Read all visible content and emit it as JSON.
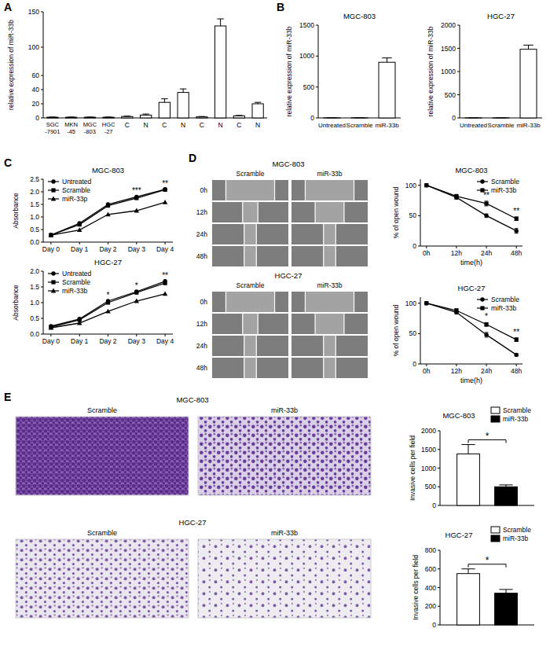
{
  "panel_letters": [
    "A",
    "B",
    "C",
    "D",
    "E"
  ],
  "wound_images": [
    {
      "title": "MGC-803",
      "columns": [
        "Scramble",
        "miR-33b"
      ],
      "rows": [
        "0h",
        "12h",
        "24h",
        "48h"
      ]
    },
    {
      "title": "HGC-27",
      "columns": [
        "Scramble",
        "miR-33b"
      ],
      "rows": [
        "0h",
        "12h",
        "24h",
        "48h"
      ]
    }
  ],
  "invasion_images": [
    {
      "title": "MGC-803",
      "columns": [
        "Scramble",
        "miR-33b"
      ]
    },
    {
      "title": "HGC-27",
      "columns": [
        "Scramble",
        "miR-33b"
      ]
    }
  ],
  "chart_data": [
    {
      "type": "bar",
      "ylabel": "relative expression of miR-33b",
      "categories": [
        "SGC-7901",
        "MKN-45",
        "MGC-803",
        "HGC-27",
        "C",
        "N",
        "C",
        "N",
        "C",
        "N",
        "C",
        "N"
      ],
      "series": [
        {
          "name": "miR-33b",
          "color": "#ffffff",
          "values": [
            1,
            1,
            1,
            1,
            2,
            4,
            22,
            36,
            1.5,
            130,
            3,
            20
          ],
          "errors": [
            0.2,
            0.2,
            0.2,
            0.2,
            0.5,
            1.5,
            5,
            5,
            0.5,
            10,
            0.5,
            2
          ]
        }
      ],
      "ylim": [
        0,
        150
      ],
      "yticks": [
        0,
        20,
        40,
        60,
        100,
        150
      ]
    },
    {
      "type": "bar",
      "title": "MGC-803",
      "ylabel": "relative expression of miR-33b",
      "categories": [
        "Untreated",
        "Scramble",
        "miR-33b"
      ],
      "series": [
        {
          "name": "miR-33b",
          "color": "#ffffff",
          "values": [
            1,
            1.2,
            900
          ],
          "errors": [
            0.1,
            0.2,
            70
          ]
        }
      ],
      "ylim": [
        0,
        1500
      ],
      "yticks": [
        0,
        500,
        1000,
        1500
      ]
    },
    {
      "type": "bar",
      "title": "HGC-27",
      "ylabel": "relative expression of miR-33b",
      "categories": [
        "Untreated",
        "Scramble",
        "miR-33b"
      ],
      "series": [
        {
          "name": "miR-33b",
          "color": "#ffffff",
          "values": [
            1,
            1.1,
            1480
          ],
          "errors": [
            0.1,
            0.1,
            90
          ]
        }
      ],
      "ylim": [
        0,
        2000
      ],
      "yticks": [
        0,
        500,
        1000,
        1500,
        2000
      ]
    },
    {
      "type": "line",
      "title": "MGC-803",
      "ylabel": "Absorbance",
      "categories": [
        "Day 0",
        "Day 1",
        "Day 2",
        "Day 3",
        "Day 4"
      ],
      "series": [
        {
          "name": "Untreated",
          "color": "#000000",
          "marker": "circle",
          "values": [
            0.28,
            0.75,
            1.5,
            1.8,
            2.1
          ]
        },
        {
          "name": "Scramble",
          "color": "#000000",
          "marker": "square",
          "values": [
            0.28,
            0.7,
            1.45,
            1.75,
            2.08
          ]
        },
        {
          "name": "miR-33p",
          "color": "#000000",
          "marker": "triangle",
          "values": [
            0.28,
            0.48,
            1.1,
            1.25,
            1.58
          ]
        }
      ],
      "ylim": [
        0,
        2.5
      ],
      "yticks": [
        {
          "value": 0,
          "label": "0.0"
        },
        0.5,
        {
          "value": 1,
          "label": "1.0"
        },
        1.5,
        {
          "value": 2,
          "label": "2.0"
        },
        2.5
      ],
      "legend": "upper left",
      "annotations": [
        {
          "category": "Day 3",
          "text": "***"
        },
        {
          "category": "Day 4",
          "text": "**"
        }
      ]
    },
    {
      "type": "line",
      "title": "HGC-27",
      "ylabel": "Absorbance",
      "categories": [
        "Day 0",
        "Day 1",
        "Day 2",
        "Day 3",
        "Day 4"
      ],
      "series": [
        {
          "name": "Untreated",
          "color": "#000000",
          "marker": "circle",
          "values": [
            0.25,
            0.48,
            1.05,
            1.35,
            1.68
          ]
        },
        {
          "name": "Scramble",
          "color": "#000000",
          "marker": "square",
          "values": [
            0.22,
            0.45,
            1.0,
            1.32,
            1.62
          ]
        },
        {
          "name": "miR-33b",
          "color": "#000000",
          "marker": "triangle",
          "values": [
            0.2,
            0.35,
            0.72,
            1.05,
            1.28
          ]
        }
      ],
      "ylim": [
        0,
        2
      ],
      "yticks": [
        {
          "value": 0,
          "label": "0.0"
        },
        0.5,
        {
          "value": 1,
          "label": "1.0"
        },
        1.5,
        {
          "value": 2,
          "label": "2.0"
        }
      ],
      "legend": "upper left",
      "annotations": [
        {
          "category": "Day 2",
          "text": "*"
        },
        {
          "category": "Day 3",
          "text": "*"
        },
        {
          "category": "Day 4",
          "text": "**"
        }
      ]
    },
    {
      "type": "line",
      "title": "MGC-803",
      "ylabel": "% of open wound",
      "xlabel": "time(h)",
      "categories": [
        "0h",
        "12h",
        "24h",
        "48h"
      ],
      "series": [
        {
          "name": "Scramble",
          "color": "#000000",
          "marker": "circle",
          "values": [
            100,
            80,
            50,
            25
          ],
          "errors": [
            0,
            3,
            3,
            4
          ]
        },
        {
          "name": "miR-33b",
          "color": "#000000",
          "marker": "square",
          "values": [
            100,
            82,
            70,
            45
          ],
          "errors": [
            0,
            3,
            4,
            3
          ]
        }
      ],
      "ylim": [
        0,
        110
      ],
      "yticks": [
        0,
        50,
        100
      ],
      "legend": "upper right",
      "annotations": [
        {
          "category": "24h",
          "text": "**"
        },
        {
          "category": "48h",
          "text": "**"
        }
      ]
    },
    {
      "type": "line",
      "title": "HGC-27",
      "ylabel": "% of open wound",
      "xlabel": "time(h)",
      "categories": [
        "0h",
        "12h",
        "24h",
        "48h"
      ],
      "series": [
        {
          "name": "Scramble",
          "color": "#000000",
          "marker": "circle",
          "values": [
            100,
            85,
            48,
            15
          ],
          "errors": [
            0,
            3,
            4,
            2
          ]
        },
        {
          "name": "miR-33b",
          "color": "#000000",
          "marker": "square",
          "values": [
            100,
            88,
            65,
            40
          ],
          "errors": [
            0,
            3,
            3,
            3
          ]
        }
      ],
      "ylim": [
        0,
        110
      ],
      "yticks": [
        0,
        50,
        100
      ],
      "legend": "upper right",
      "annotations": [
        {
          "category": "24h",
          "text": "*"
        },
        {
          "category": "48h",
          "text": "**"
        }
      ]
    },
    {
      "type": "bar",
      "title": "MGC-803",
      "ylabel": "Invasive cells per field",
      "categories": [
        null
      ],
      "series": [
        {
          "name": "Scramble",
          "color": "#ffffff",
          "values": [
            1380
          ],
          "errors": [
            250
          ]
        },
        {
          "name": "miR-33b",
          "color": "#000000",
          "values": [
            500
          ],
          "errors": [
            50
          ]
        }
      ],
      "ylim": [
        0,
        2000
      ],
      "yticks": [
        0,
        500,
        1000,
        1500,
        2000
      ],
      "legend": "upper right",
      "annotations": [
        {
          "text": "*"
        }
      ]
    },
    {
      "type": "bar",
      "title": "HGC-27",
      "ylabel": "Invasive cells per field",
      "categories": [
        null
      ],
      "series": [
        {
          "name": "Scramble",
          "color": "#ffffff",
          "values": [
            550
          ],
          "errors": [
            50
          ]
        },
        {
          "name": "miR-33b",
          "color": "#000000",
          "values": [
            340
          ],
          "errors": [
            40
          ]
        }
      ],
      "ylim": [
        0,
        800
      ],
      "yticks": [
        0,
        200,
        400,
        600,
        800
      ],
      "legend": "upper right",
      "annotations": [
        {
          "text": "*"
        }
      ]
    }
  ]
}
